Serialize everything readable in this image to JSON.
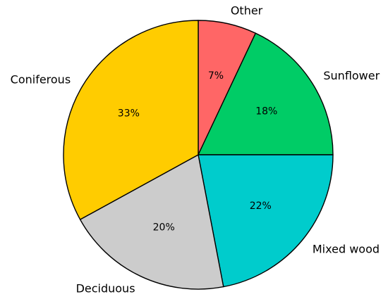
{
  "chart_data": {
    "type": "pie",
    "start_angle_deg": 90,
    "direction": "clockwise",
    "slices": [
      {
        "label": "Other",
        "value": 7,
        "pct_label": "7%",
        "color": "#ff6666"
      },
      {
        "label": "Sunflower",
        "value": 18,
        "pct_label": "18%",
        "color": "#00cc66"
      },
      {
        "label": "Mixed wood",
        "value": 22,
        "pct_label": "22%",
        "color": "#00cccc"
      },
      {
        "label": "Deciduous",
        "value": 20,
        "pct_label": "20%",
        "color": "#cccccc"
      },
      {
        "label": "Coniferous",
        "value": 33,
        "pct_label": "33%",
        "color": "#ffcc00"
      }
    ]
  }
}
